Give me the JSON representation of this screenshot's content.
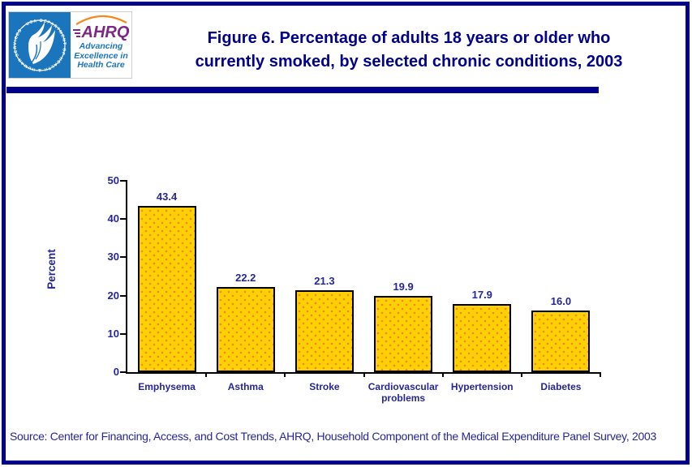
{
  "colors": {
    "border_navy": "#00008B",
    "title_navy": "#00008C",
    "text_navy": "#26269A",
    "gold": "#FFD105",
    "dot_orange": "#F5881F",
    "hhs_blue": "#1B75BC",
    "ahrq_purple": "#7B2982"
  },
  "header": {
    "hhs_seal_text": "DEPARTMENT OF HEALTH & HUMAN SERVICES • USA",
    "ahrq_acronym": "AHRQ",
    "ahrq_tagline_lines": [
      "Advancing",
      "Excellence in",
      "Health Care"
    ],
    "title_lines": [
      "Figure 6. Percentage of adults 18 years or older who",
      "currently smoked, by selected chronic conditions, 2003"
    ]
  },
  "chart_data": {
    "type": "bar",
    "title": "Figure 6. Percentage of adults 18 years or older who currently smoked, by selected chronic conditions, 2003",
    "categories": [
      "Emphysema",
      "Asthma",
      "Stroke",
      "Cardiovascular problems",
      "Hypertension",
      "Diabetes"
    ],
    "values": [
      43.4,
      22.2,
      21.3,
      19.9,
      17.9,
      16.0
    ],
    "value_labels": [
      "43.4",
      "22.2",
      "21.3",
      "19.9",
      "17.9",
      "16.0"
    ],
    "xlabel": "",
    "ylabel": "Percent",
    "ylim": [
      0,
      50
    ],
    "yticks": [
      0,
      10,
      20,
      30,
      40,
      50
    ],
    "grid": false,
    "legend": "none",
    "bar_style": "gold fill with orange dot pattern and black outline"
  },
  "footer": {
    "source": "Source: Center for Financing, Access, and Cost Trends, AHRQ, Household Component of the Medical Expenditure Panel Survey, 2003"
  }
}
